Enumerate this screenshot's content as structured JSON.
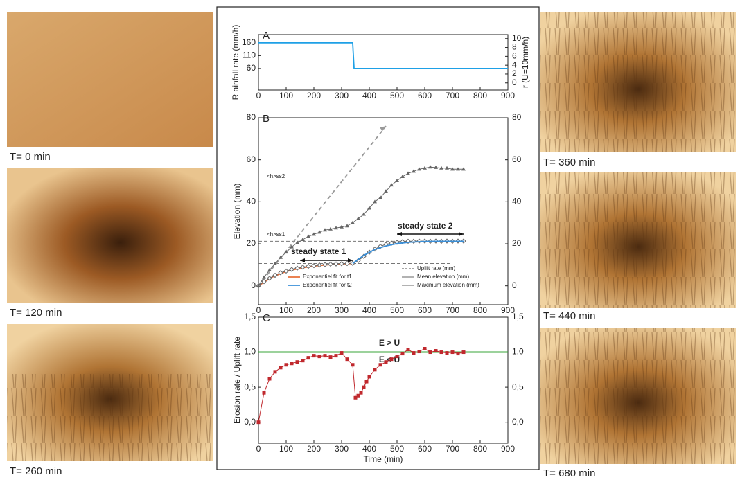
{
  "images": [
    {
      "caption": "T= 0 min"
    },
    {
      "caption": "T= 120 min"
    },
    {
      "caption": "T= 260 min"
    },
    {
      "caption": "T= 360 min"
    },
    {
      "caption": "T= 440 min"
    },
    {
      "caption": "T= 680 min"
    }
  ],
  "chart_data": [
    {
      "type": "line",
      "label": "A",
      "ylabel": "R ainfall rate (mm/h)",
      "y2label": "r (U=10mm/h)",
      "xlim": [
        0,
        900
      ],
      "xticks": [
        0,
        100,
        200,
        300,
        400,
        500,
        600,
        700,
        800,
        900
      ],
      "ylim": [
        -24,
        192
      ],
      "yticks": [
        60,
        110,
        160
      ],
      "y2lim": [
        -1.6,
        10.9
      ],
      "y2ticks": [
        0,
        2,
        4,
        6,
        8,
        10
      ],
      "series": [
        {
          "color": "#1ea0e6",
          "line": true,
          "x": [
            0,
            340,
            345,
            900
          ],
          "values": [
            160,
            160,
            60,
            60
          ]
        }
      ]
    },
    {
      "type": "line",
      "label": "B",
      "ylabel": "Elevation (mm)",
      "xlim": [
        0,
        900
      ],
      "xticks": [
        0,
        100,
        200,
        300,
        400,
        500,
        600,
        700,
        800,
        900
      ],
      "ylim": [
        -9,
        80
      ],
      "yticks": [
        0,
        20,
        40,
        60,
        80
      ],
      "y2lim": [
        -9,
        80
      ],
      "y2ticks": [
        0,
        20,
        40,
        60,
        80
      ],
      "reference_lines": [
        10.6,
        21.2
      ],
      "annotations": [
        "<h>ss1",
        "<h>ss2",
        "steady state 1",
        "steady state 2"
      ],
      "legend": "lower right",
      "series": [
        {
          "name": "Uplift rate (mm)",
          "color": "#999999",
          "line": true,
          "dash": true,
          "x": [
            0,
            460
          ],
          "values": [
            0,
            76
          ]
        },
        {
          "name": "Exponentiel fit for t1",
          "color": "#e8703a",
          "line": true,
          "x": [
            0,
            50,
            100,
            150,
            200,
            250,
            300,
            340
          ],
          "values": [
            0,
            4.2,
            6.8,
            8.4,
            9.4,
            10,
            10.4,
            10.6
          ]
        },
        {
          "name": "Mean elevation (mm)",
          "color": "#666666",
          "line": true,
          "marker": "diamond",
          "x": [
            0,
            20,
            40,
            60,
            80,
            100,
            120,
            140,
            160,
            180,
            200,
            220,
            240,
            260,
            280,
            300,
            320,
            340,
            360,
            380,
            400,
            420,
            440,
            460,
            480,
            500,
            520,
            540,
            560,
            580,
            600,
            620,
            640,
            660,
            680,
            700,
            720,
            740
          ],
          "values": [
            0,
            2,
            3.6,
            5,
            6.2,
            7,
            7.8,
            8.4,
            8.9,
            9.3,
            9.6,
            9.9,
            10.1,
            10.3,
            10.4,
            10.5,
            10.6,
            10.7,
            12,
            14,
            16,
            17.5,
            18.8,
            19.7,
            20.3,
            20.7,
            21,
            21.2,
            21.2,
            21.3,
            21.3,
            21.2,
            21.3,
            21.2,
            21.3,
            21.2,
            21.3,
            21.3
          ]
        },
        {
          "name": "Exponentiel fit for t2",
          "color": "#3a8fd8",
          "line": true,
          "x": [
            340,
            380,
            420,
            460,
            500,
            550,
            600,
            650,
            700,
            740
          ],
          "values": [
            10.6,
            14.5,
            17.3,
            19,
            20.1,
            20.8,
            21.1,
            21.2,
            21.2,
            21.2
          ]
        },
        {
          "name": "Maximum elevation (mm)",
          "color": "#666666",
          "line": true,
          "marker": "triangle",
          "x": [
            0,
            20,
            40,
            60,
            80,
            100,
            120,
            140,
            160,
            180,
            200,
            220,
            240,
            260,
            280,
            300,
            320,
            340,
            360,
            380,
            400,
            420,
            440,
            460,
            480,
            500,
            520,
            540,
            560,
            580,
            600,
            620,
            640,
            660,
            680,
            700,
            720,
            740
          ],
          "values": [
            0,
            4,
            7.5,
            10.5,
            13.5,
            16,
            18.5,
            20.5,
            22,
            23.5,
            24.5,
            25.5,
            26.5,
            27,
            27.5,
            28,
            28.5,
            30,
            32,
            34,
            37,
            40,
            42,
            45,
            48,
            50,
            52,
            53.5,
            54.5,
            55.5,
            56,
            56.5,
            56.3,
            56,
            56,
            55.5,
            55.5,
            55.5
          ]
        }
      ]
    },
    {
      "type": "line",
      "label": "C",
      "ylabel": "Erosion rate / Uplift rate",
      "xlabel": "Time (min)",
      "xlim": [
        0,
        900
      ],
      "xticks": [
        0,
        100,
        200,
        300,
        400,
        500,
        600,
        700,
        800,
        900
      ],
      "ylim": [
        -0.3,
        1.5
      ],
      "yticks": [
        {
          "value": 0,
          "label": "0,0"
        },
        {
          "value": 0.5,
          "label": "0,5"
        },
        {
          "value": 1,
          "label": "1,0"
        },
        {
          "value": 1.5,
          "label": "1,5"
        }
      ],
      "y2lim": [
        -0.3,
        1.5
      ],
      "y2ticks": [
        {
          "value": 0,
          "label": "0,0"
        },
        {
          "value": 0.5,
          "label": "0,5"
        },
        {
          "value": 1,
          "label": "1,0"
        },
        {
          "value": 1.5,
          "label": "1,5"
        }
      ],
      "reference_lines": [
        1
      ],
      "annotations": [
        "E > U",
        "E < U"
      ],
      "series": [
        {
          "color": "#c0282d",
          "line": true,
          "marker": "square",
          "x": [
            0,
            20,
            40,
            60,
            80,
            100,
            120,
            140,
            160,
            180,
            200,
            220,
            240,
            260,
            280,
            300,
            320,
            340,
            350,
            360,
            370,
            380,
            390,
            400,
            420,
            440,
            460,
            480,
            500,
            520,
            540,
            560,
            580,
            600,
            620,
            640,
            660,
            680,
            700,
            720,
            740
          ],
          "values": [
            0,
            0.42,
            0.62,
            0.72,
            0.78,
            0.82,
            0.84,
            0.86,
            0.88,
            0.92,
            0.95,
            0.94,
            0.95,
            0.93,
            0.95,
            0.99,
            0.9,
            0.82,
            0.35,
            0.38,
            0.42,
            0.5,
            0.58,
            0.65,
            0.75,
            0.82,
            0.86,
            0.9,
            0.94,
            0.98,
            1.04,
            0.99,
            1.01,
            1.05,
            1,
            1.02,
            1,
            0.99,
            1,
            0.98,
            1
          ]
        }
      ]
    }
  ]
}
